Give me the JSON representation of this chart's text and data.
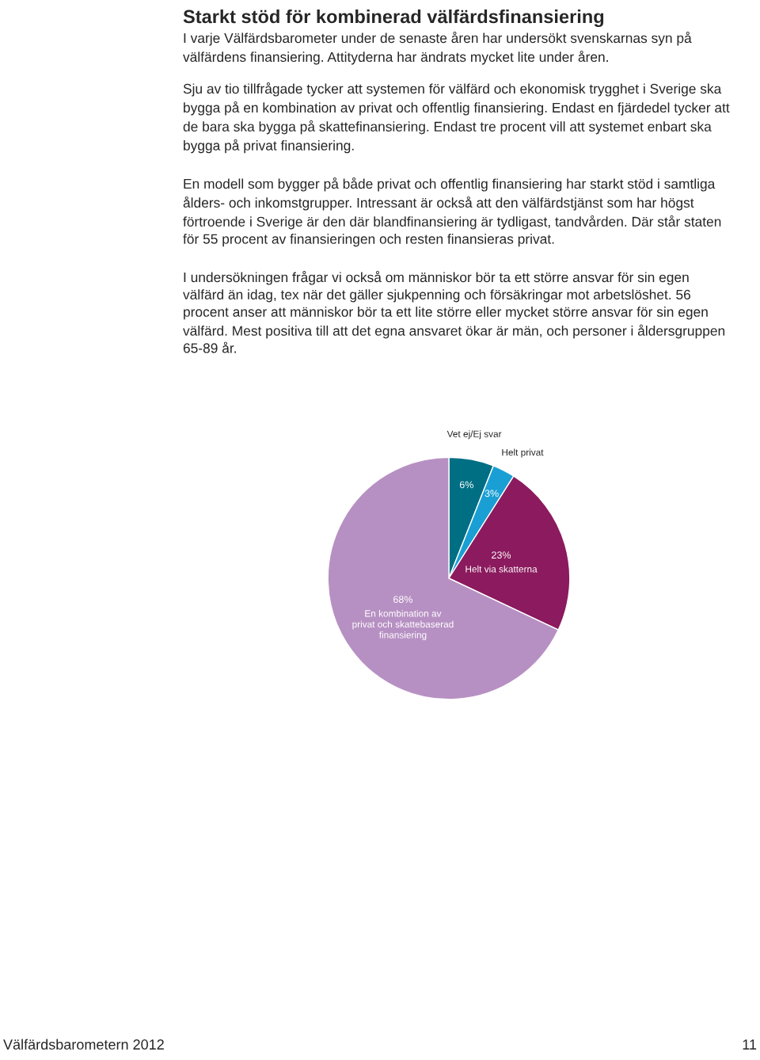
{
  "chart_data": {
    "type": "pie",
    "title": "Starkt stöd för kombinerad välfärdsfinansiering",
    "annotations": [
      "I varje Välfärdsbarometer under de senaste åren har undersökt svenskarnas syn på välfärdens finansiering. Attityderna har ändrats mycket lite under åren.",
      "Sju av tio tillfrågade tycker att systemen för välfärd och ekonomisk trygghet i Sverige ska bygga på en kombination av privat och offentlig finansiering. Endast en fjärdedel tycker att de bara ska bygga på skattefinansiering. Endast tre procent vill att systemet enbart ska bygga på privat finansiering.",
      "En modell som bygger på både privat och offentlig finansiering har starkt stöd i samtliga ålders- och inkomstgrupper. Intressant är också att den välfärdstjänst som har högst förtroende i Sverige är den där blandfinansiering är tydligast, tandvården. Där står staten för 55 procent av finansieringen och resten finansieras privat.",
      "I undersökningen frågar vi också om människor bör ta ett större ansvar för sin egen välfärd än idag, tex när det gäller sjukpenning och försäkringar mot arbetslöshet. 56 procent anser att människor bör ta ett lite större eller mycket större ansvar för sin egen välfärd. Mest positiva till att det egna ansvaret ökar är män, och personer i åldersgruppen 65-89 år.",
      "Välfärdsbarometern 2012",
      "11"
    ],
    "categories": [
      "Vet ej/Ej svar",
      "Helt privat",
      "Helt via skatterna",
      "En kombination av\nprivat och skattebaserad\nfinansiering"
    ],
    "values": [
      6,
      3,
      23,
      68
    ],
    "colors": [
      "#006f84",
      "#1a9fd4",
      "#8b1a5e",
      "#b790c3"
    ],
    "value_labels": [
      "6%",
      "3%",
      "23%",
      "68%"
    ]
  }
}
